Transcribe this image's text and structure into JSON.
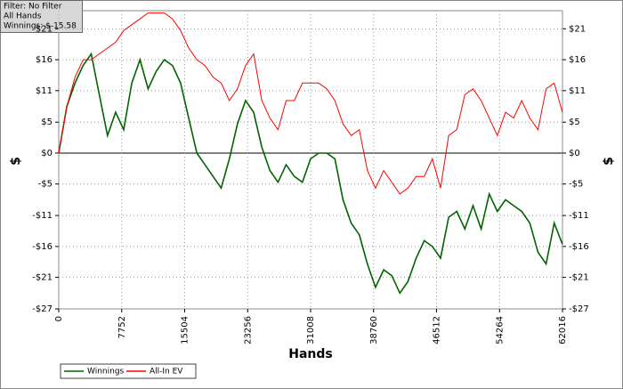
{
  "chart_data": {
    "type": "line",
    "annotations": [
      "Filter: No Filter",
      "All Hands",
      "Winnings: $-15.58"
    ],
    "x_label": "Hands",
    "y_label": "$",
    "x": [
      0,
      1000,
      2000,
      3000,
      4000,
      5000,
      6000,
      7000,
      8000,
      9000,
      10000,
      11000,
      12000,
      13000,
      14000,
      15000,
      16000,
      17000,
      18000,
      19000,
      20000,
      21000,
      22000,
      23000,
      24000,
      25000,
      26000,
      27000,
      28000,
      29000,
      30000,
      31000,
      32000,
      33000,
      34000,
      35000,
      36000,
      37000,
      38000,
      39000,
      40000,
      41000,
      42000,
      43000,
      44000,
      45000,
      46000,
      47000,
      48000,
      49000,
      50000,
      51000,
      52000,
      53000,
      54000,
      55000,
      56000,
      57000,
      58000,
      59000,
      60000,
      61000,
      62000
    ],
    "series": [
      {
        "name": "Winnings",
        "color": "#006400",
        "values": [
          0,
          8,
          12,
          15,
          17,
          10,
          3,
          7,
          4,
          12,
          16,
          11,
          14,
          16,
          15,
          12,
          6,
          0,
          -2,
          -4,
          -6,
          -1,
          5,
          9,
          7,
          1,
          -3,
          -5,
          -2,
          -4,
          -5,
          -1,
          0,
          0,
          -1,
          -8,
          -12,
          -14,
          -19,
          -23,
          -20,
          -21,
          -24,
          -22,
          -18,
          -15,
          -16,
          -18,
          -11,
          -10,
          -13,
          -9,
          -13,
          -7,
          -10,
          -8,
          -9,
          -10,
          -12,
          -17,
          -19,
          -12,
          -15.6
        ]
      },
      {
        "name": "All-In EV",
        "color": "#ff0000",
        "values": [
          0,
          8,
          13,
          16,
          16,
          17,
          18,
          19,
          21,
          22,
          23,
          24,
          24,
          24,
          23,
          21,
          18,
          16,
          15,
          13,
          12,
          9,
          11,
          15,
          17,
          9,
          6,
          4,
          9,
          9,
          12,
          12,
          12,
          11,
          9,
          5,
          3,
          4,
          -3,
          -6,
          -3,
          -5,
          -7,
          -6,
          -4,
          -4,
          -1,
          -6,
          3,
          4,
          10,
          11,
          9,
          6,
          3,
          7,
          6,
          9,
          6,
          4,
          11,
          12,
          7
        ]
      }
    ],
    "xlim": [
      0,
      62016
    ],
    "xticks": [
      0,
      7752,
      15504,
      23256,
      31008,
      38760,
      46512,
      54264,
      62016
    ],
    "ylim": [
      -26.7,
      24.4
    ],
    "yticks": [
      {
        "value": 21.3,
        "label": "$21"
      },
      {
        "value": 16,
        "label": "$16"
      },
      {
        "value": 10.7,
        "label": "$11"
      },
      {
        "value": 5.3,
        "label": "$5"
      },
      {
        "value": 0,
        "label": "$0"
      },
      {
        "value": -5.3,
        "label": "-$5"
      },
      {
        "value": -10.7,
        "label": "-$11"
      },
      {
        "value": -16,
        "label": "-$16"
      },
      {
        "value": -21.3,
        "label": "-$21"
      },
      {
        "value": -26.7,
        "label": "-$27"
      }
    ],
    "grid": true,
    "zero_line": true,
    "legend": "bottom-left"
  }
}
